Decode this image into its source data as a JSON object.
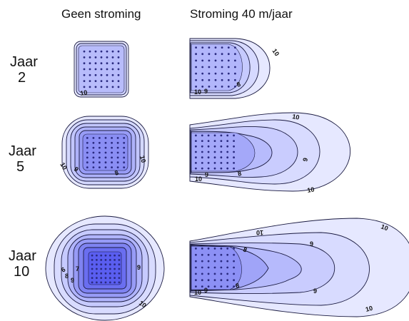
{
  "headers": {
    "no_flow": "Geen stroming",
    "flow": "Stroming 40 m/jaar"
  },
  "rows": [
    {
      "line1": "Jaar",
      "line2": "2"
    },
    {
      "line1": "Jaar",
      "line2": "5"
    },
    {
      "line1": "Jaar",
      "line2": "10"
    }
  ],
  "contour_labels": {
    "r1_left_10": "10",
    "r1_right_10": "10",
    "r1_right_10b": "10",
    "r1_right_9": "9",
    "r1_right_8": "8",
    "r2_left_10a": "10",
    "r2_left_10b": "10",
    "r2_left_9": "9",
    "r2_left_8": "8",
    "r2_right_10a": "10",
    "r2_right_10b": "10",
    "r2_right_10c": "10",
    "r2_right_9": "9",
    "r2_right_8": "8",
    "r2_right_9b": "9",
    "r3_left_9a": "9",
    "r3_left_10": "10",
    "r3_left_8": "8",
    "r3_left_7": "7",
    "r3_left_9b": "9",
    "r3_left_6": "6",
    "r3_right_10a": "10",
    "r3_right_10b": "10",
    "r3_right_10c": "10",
    "r3_right_10d": "10",
    "r3_right_9a": "9",
    "r3_right_9b": "9",
    "r3_right_8a": "8",
    "r3_right_8b": "8",
    "r3_right_9c": "9"
  },
  "colors": {
    "fill_light": "#e4e6ff",
    "fill_dark": "#5050f0",
    "line": "#1a1a40"
  }
}
